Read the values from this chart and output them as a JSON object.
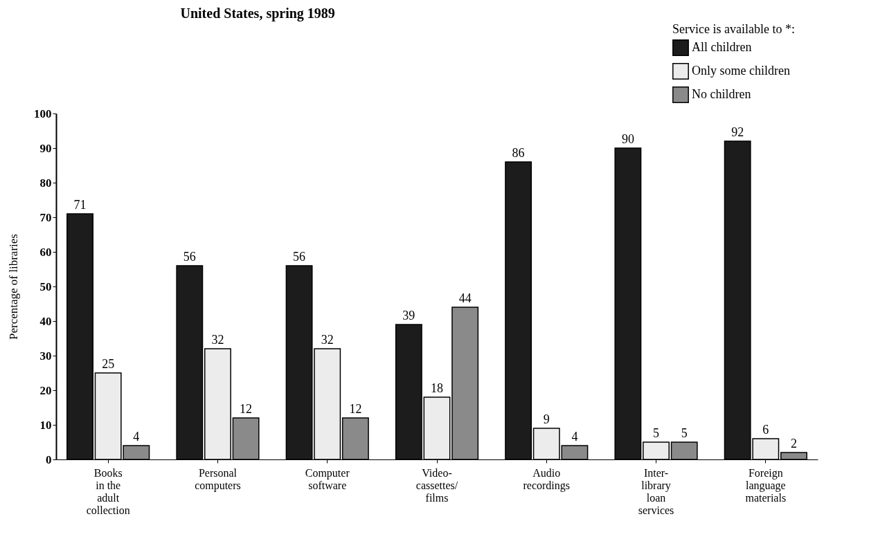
{
  "chart_data": {
    "type": "bar",
    "title": "United States, spring 1989",
    "ylabel": "Percentage of libraries",
    "legend_title": "Service is available to *:",
    "categories": [
      "Books\nin the\nadult\ncollection",
      "Personal\ncomputers",
      "Computer\nsoftware",
      "Video-\ncassettes/\nfilms",
      "Audio\nrecordings",
      "Inter-\nlibrary\nloan\nservices",
      "Foreign\nlanguage\nmaterials"
    ],
    "series": [
      {
        "name": "All children",
        "color": "#1c1c1c",
        "values": [
          71,
          56,
          56,
          39,
          86,
          90,
          92
        ]
      },
      {
        "name": "Only some children",
        "color": "#ececec",
        "values": [
          25,
          32,
          32,
          18,
          9,
          5,
          6
        ]
      },
      {
        "name": "No children",
        "color": "#8a8a8a",
        "values": [
          4,
          12,
          12,
          44,
          4,
          5,
          2
        ]
      }
    ],
    "ylim": [
      0,
      100
    ],
    "yticks": [
      0,
      10,
      20,
      30,
      40,
      50,
      60,
      70,
      80,
      90,
      100
    ],
    "grid": false,
    "legend": "top right",
    "data_labels": true
  }
}
